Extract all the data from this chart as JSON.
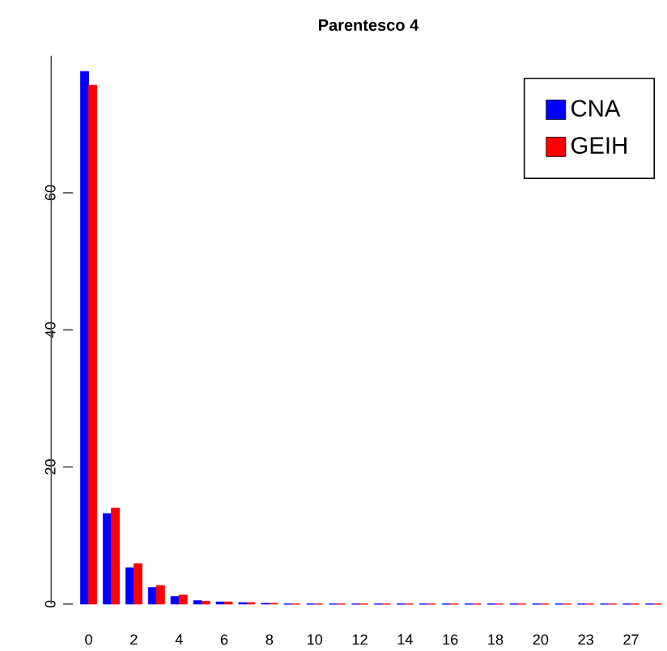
{
  "chart_data": {
    "type": "bar",
    "title": "Parentesco 4",
    "categories": [
      "0",
      null,
      "2",
      null,
      "4",
      null,
      "6",
      null,
      "8",
      null,
      "10",
      null,
      "12",
      null,
      "14",
      null,
      "16",
      null,
      "18",
      null,
      "20",
      null,
      "23",
      null,
      "27",
      null
    ],
    "series": [
      {
        "name": "CNA",
        "color": "#0000ff",
        "values": [
          77.7,
          13.2,
          5.3,
          2.4,
          1.1,
          0.5,
          0.3,
          0.2,
          0.1,
          0,
          0,
          0,
          0,
          0,
          0,
          0,
          0,
          0,
          0,
          0,
          0,
          0,
          0,
          0,
          0,
          0
        ]
      },
      {
        "name": "GEIH",
        "color": "#ff0000",
        "values": [
          75.7,
          14.0,
          5.9,
          2.7,
          1.3,
          0.4,
          0.3,
          0.2,
          0.1,
          0,
          0,
          0,
          0,
          0,
          0,
          0,
          0,
          0,
          0,
          0,
          0,
          0,
          0,
          0,
          0,
          0
        ]
      }
    ],
    "ylim": [
      0,
      80
    ],
    "yticks": [
      0,
      20,
      40,
      60
    ],
    "grid": false,
    "legend": "top right"
  }
}
